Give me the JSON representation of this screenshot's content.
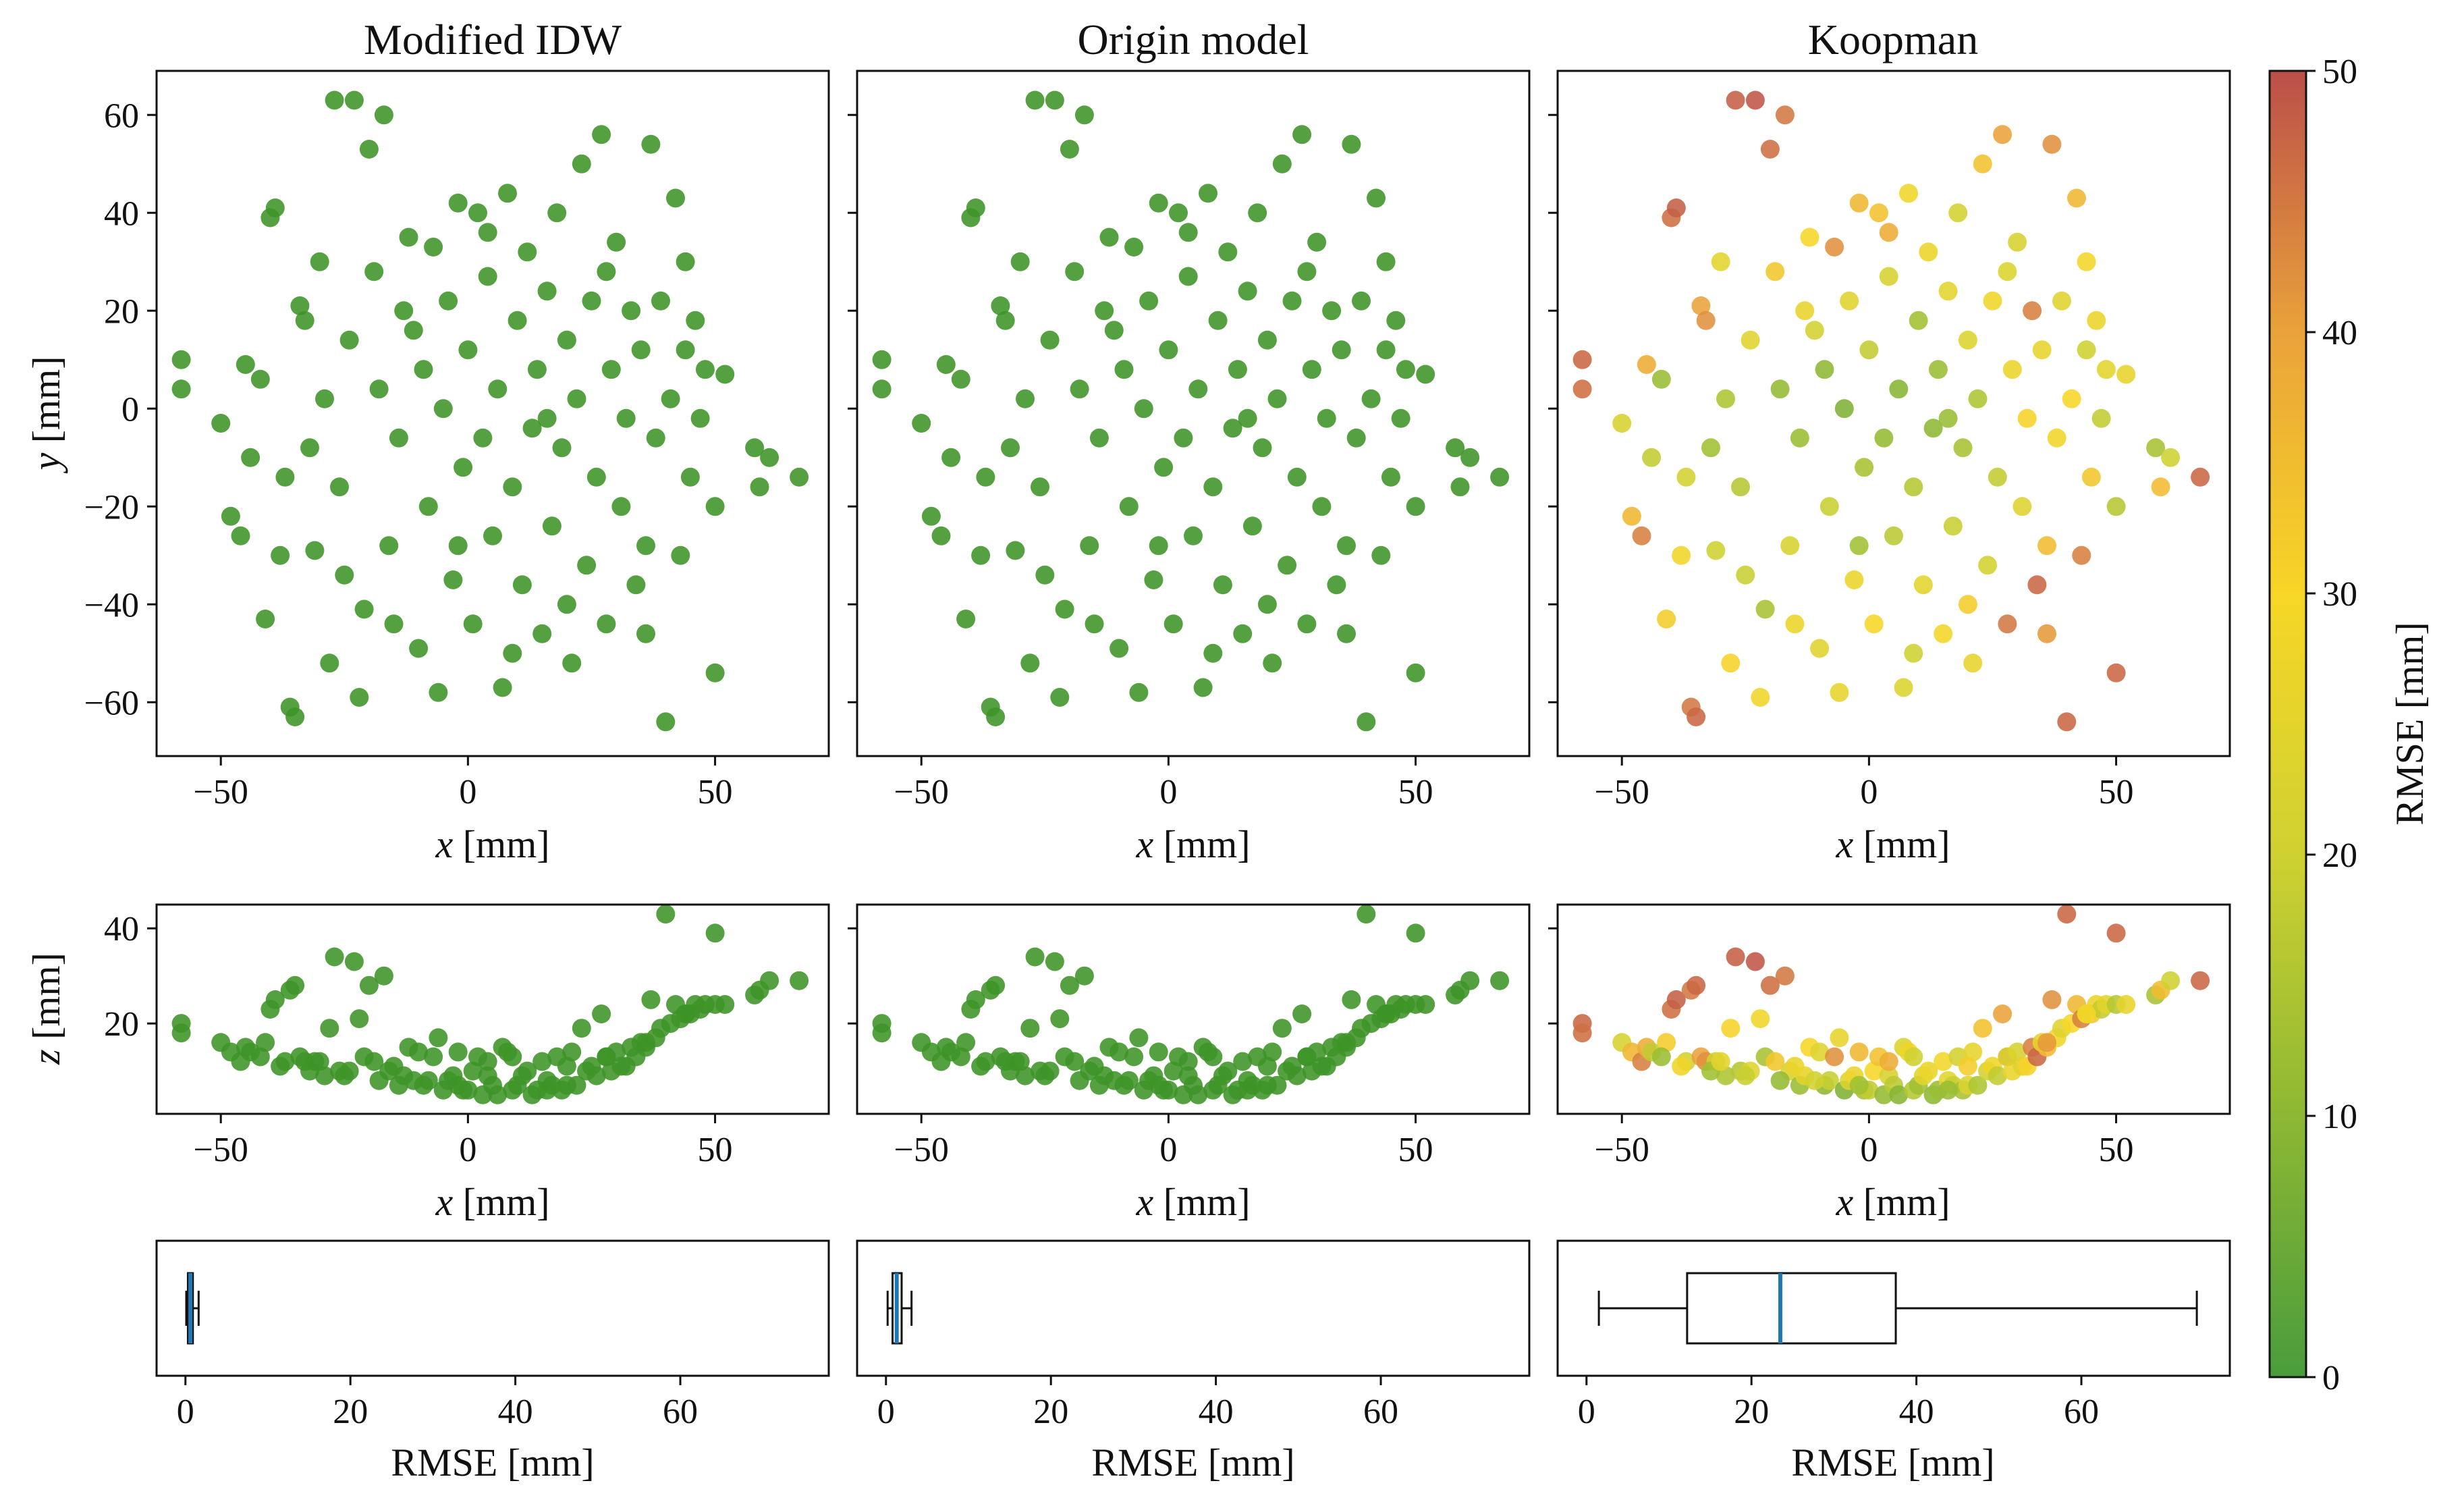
{
  "chart_data": {
    "type": "scatter",
    "panel_titles": [
      "Modified IDW",
      "Origin model",
      "Koopman"
    ],
    "xy_scatter": {
      "xlabel_var": "x",
      "xlabel_unit": "[mm]",
      "ylabel_var": "y",
      "ylabel_unit": "[mm]",
      "xlim": [
        -63,
        73
      ],
      "ylim": [
        -71,
        69
      ],
      "xticks": [
        -50,
        0,
        50
      ],
      "yticks": [
        -60,
        -40,
        -20,
        0,
        20,
        40,
        60
      ],
      "xtick_labels": [
        "−50",
        "0",
        "50"
      ],
      "ytick_labels": [
        "−60",
        "−40",
        "−20",
        "0",
        "20",
        "40",
        "60"
      ]
    },
    "xz_scatter": {
      "xlabel_var": "x",
      "xlabel_unit": "[mm]",
      "ylabel_var": "z",
      "ylabel_unit": "[mm]",
      "xlim": [
        -63,
        73
      ],
      "ylim": [
        1,
        45
      ],
      "xticks": [
        -50,
        0,
        50
      ],
      "yticks": [
        20,
        40
      ],
      "xtick_labels": [
        "−50",
        "0",
        "50"
      ],
      "ytick_labels": [
        "20",
        "40"
      ]
    },
    "rmse_boxplot": {
      "xlabel": "RMSE [mm]",
      "xlim": [
        -3.5,
        78
      ],
      "xticks": [
        0,
        20,
        40,
        60
      ],
      "xtick_labels": [
        "0",
        "20",
        "40",
        "60"
      ],
      "boxes": [
        {
          "whisker_low": 0.1,
          "q1": 0.3,
          "median": 0.6,
          "q3": 0.9,
          "whisker_high": 1.6
        },
        {
          "whisker_low": 0.2,
          "q1": 0.8,
          "median": 1.3,
          "q3": 1.9,
          "whisker_high": 3.1
        },
        {
          "whisker_low": 1.5,
          "q1": 12.2,
          "median": 23.5,
          "q3": 37.5,
          "whisker_high": 74
        }
      ]
    },
    "colorbar": {
      "label": "RMSE [mm]",
      "min": 0,
      "max": 50,
      "ticks": [
        0,
        10,
        20,
        30,
        40,
        50
      ],
      "tick_labels": [
        "0",
        "10",
        "20",
        "30",
        "40",
        "50"
      ],
      "colors": [
        "#4a9c3c",
        "#8db833",
        "#cfd131",
        "#f7d626",
        "#eaa23a",
        "#bb4f49"
      ]
    },
    "point_color_constant": "#3d9427",
    "points": [
      {
        "x": -58,
        "y": 10,
        "z": 20,
        "rmse": 47
      },
      {
        "x": -58,
        "y": 4,
        "z": 18,
        "rmse": 46
      },
      {
        "x": -50,
        "y": -3,
        "z": 16,
        "rmse": 22
      },
      {
        "x": -48,
        "y": -22,
        "z": 14,
        "rmse": 36
      },
      {
        "x": -46,
        "y": -26,
        "z": 12,
        "rmse": 44
      },
      {
        "x": -45,
        "y": 9,
        "z": 15,
        "rmse": 38
      },
      {
        "x": -44,
        "y": -10,
        "z": 14,
        "rmse": 18
      },
      {
        "x": -41,
        "y": -43,
        "z": 16,
        "rmse": 32
      },
      {
        "x": -40,
        "y": 39,
        "z": 23,
        "rmse": 46
      },
      {
        "x": -39,
        "y": 41,
        "z": 25,
        "rmse": 48
      },
      {
        "x": -37,
        "y": -14,
        "z": 12,
        "rmse": 21
      },
      {
        "x": -36,
        "y": -61,
        "z": 27,
        "rmse": 45
      },
      {
        "x": -35,
        "y": -63,
        "z": 28,
        "rmse": 47
      },
      {
        "x": -34,
        "y": 21,
        "z": 13,
        "rmse": 40
      },
      {
        "x": -33,
        "y": 18,
        "z": 12,
        "rmse": 42
      },
      {
        "x": -31,
        "y": -29,
        "z": 12,
        "rmse": 20
      },
      {
        "x": -29,
        "y": 2,
        "z": 9,
        "rmse": 15
      },
      {
        "x": -28,
        "y": -52,
        "z": 19,
        "rmse": 31
      },
      {
        "x": -27,
        "y": 63,
        "z": 34,
        "rmse": 48
      },
      {
        "x": -26,
        "y": -16,
        "z": 10,
        "rmse": 16
      },
      {
        "x": -24,
        "y": 14,
        "z": 10,
        "rmse": 24
      },
      {
        "x": -23,
        "y": 63,
        "z": 33,
        "rmse": 49
      },
      {
        "x": -22,
        "y": -59,
        "z": 21,
        "rmse": 28
      },
      {
        "x": -21,
        "y": -41,
        "z": 13,
        "rmse": 14
      },
      {
        "x": -20,
        "y": 53,
        "z": 28,
        "rmse": 46
      },
      {
        "x": -19,
        "y": 28,
        "z": 12,
        "rmse": 33
      },
      {
        "x": -17,
        "y": 60,
        "z": 30,
        "rmse": 45
      },
      {
        "x": -16,
        "y": -28,
        "z": 10,
        "rmse": 22
      },
      {
        "x": -14,
        "y": -6,
        "z": 7,
        "rmse": 12
      },
      {
        "x": -13,
        "y": 20,
        "z": 9,
        "rmse": 26
      },
      {
        "x": -12,
        "y": 35,
        "z": 15,
        "rmse": 30
      },
      {
        "x": -10,
        "y": -49,
        "z": 14,
        "rmse": 24
      },
      {
        "x": -9,
        "y": 8,
        "z": 7,
        "rmse": 10
      },
      {
        "x": -8,
        "y": -20,
        "z": 8,
        "rmse": 19
      },
      {
        "x": -7,
        "y": 33,
        "z": 13,
        "rmse": 42
      },
      {
        "x": -6,
        "y": -58,
        "z": 17,
        "rmse": 26
      },
      {
        "x": -5,
        "y": 0,
        "z": 6,
        "rmse": 8
      },
      {
        "x": -4,
        "y": 22,
        "z": 8,
        "rmse": 24
      },
      {
        "x": -3,
        "y": -35,
        "z": 9,
        "rmse": 27
      },
      {
        "x": -2,
        "y": 42,
        "z": 14,
        "rmse": 36
      },
      {
        "x": -1,
        "y": -12,
        "z": 6,
        "rmse": 14
      },
      {
        "x": 0,
        "y": 12,
        "z": 6,
        "rmse": 18
      },
      {
        "x": 1,
        "y": -44,
        "z": 10,
        "rmse": 30
      },
      {
        "x": 2,
        "y": 40,
        "z": 13,
        "rmse": 34
      },
      {
        "x": 3,
        "y": -6,
        "z": 5,
        "rmse": 11
      },
      {
        "x": 4,
        "y": 27,
        "z": 9,
        "rmse": 22
      },
      {
        "x": 5,
        "y": -26,
        "z": 7,
        "rmse": 17
      },
      {
        "x": 6,
        "y": 4,
        "z": 5,
        "rmse": 9
      },
      {
        "x": 7,
        "y": -57,
        "z": 15,
        "rmse": 23
      },
      {
        "x": 8,
        "y": 44,
        "z": 14,
        "rmse": 28
      },
      {
        "x": 9,
        "y": -16,
        "z": 6,
        "rmse": 16
      },
      {
        "x": 10,
        "y": 18,
        "z": 7,
        "rmse": 13
      },
      {
        "x": 11,
        "y": -36,
        "z": 9,
        "rmse": 25
      },
      {
        "x": 12,
        "y": 32,
        "z": 10,
        "rmse": 27
      },
      {
        "x": 13,
        "y": -4,
        "z": 5,
        "rmse": 10
      },
      {
        "x": 14,
        "y": 8,
        "z": 6,
        "rmse": 12
      },
      {
        "x": 15,
        "y": -46,
        "z": 12,
        "rmse": 29
      },
      {
        "x": 16,
        "y": 24,
        "z": 8,
        "rmse": 25
      },
      {
        "x": 17,
        "y": -24,
        "z": 7,
        "rmse": 19
      },
      {
        "x": 18,
        "y": 40,
        "z": 13,
        "rmse": 21
      },
      {
        "x": 19,
        "y": -8,
        "z": 6,
        "rmse": 14
      },
      {
        "x": 20,
        "y": 14,
        "z": 7,
        "rmse": 23
      },
      {
        "x": 21,
        "y": -52,
        "z": 14,
        "rmse": 26
      },
      {
        "x": 22,
        "y": 2,
        "z": 7,
        "rmse": 15
      },
      {
        "x": 23,
        "y": 50,
        "z": 19,
        "rmse": 34
      },
      {
        "x": 24,
        "y": -32,
        "z": 10,
        "rmse": 21
      },
      {
        "x": 25,
        "y": 22,
        "z": 11,
        "rmse": 28
      },
      {
        "x": 26,
        "y": -14,
        "z": 9,
        "rmse": 18
      },
      {
        "x": 27,
        "y": 56,
        "z": 22,
        "rmse": 40
      },
      {
        "x": 28,
        "y": -44,
        "z": 13,
        "rmse": 45
      },
      {
        "x": 29,
        "y": 8,
        "z": 10,
        "rmse": 27
      },
      {
        "x": 30,
        "y": 34,
        "z": 14,
        "rmse": 22
      },
      {
        "x": 31,
        "y": -20,
        "z": 11,
        "rmse": 24
      },
      {
        "x": 32,
        "y": -2,
        "z": 11,
        "rmse": 31
      },
      {
        "x": 33,
        "y": 20,
        "z": 15,
        "rmse": 44
      },
      {
        "x": 34,
        "y": -36,
        "z": 13,
        "rmse": 47
      },
      {
        "x": 35,
        "y": 12,
        "z": 16,
        "rmse": 26
      },
      {
        "x": 36,
        "y": -28,
        "z": 15,
        "rmse": 35
      },
      {
        "x": 37,
        "y": 54,
        "z": 25,
        "rmse": 42
      },
      {
        "x": 38,
        "y": -6,
        "z": 17,
        "rmse": 28
      },
      {
        "x": 39,
        "y": 22,
        "z": 19,
        "rmse": 24
      },
      {
        "x": 40,
        "y": -64,
        "z": 43,
        "rmse": 47
      },
      {
        "x": 41,
        "y": 2,
        "z": 20,
        "rmse": 30
      },
      {
        "x": 42,
        "y": 43,
        "z": 24,
        "rmse": 36
      },
      {
        "x": 43,
        "y": -30,
        "z": 21,
        "rmse": 44
      },
      {
        "x": 44,
        "y": 12,
        "z": 22,
        "rmse": 20
      },
      {
        "x": 45,
        "y": -14,
        "z": 22,
        "rmse": 33
      },
      {
        "x": 46,
        "y": 18,
        "z": 24,
        "rmse": 27
      },
      {
        "x": 47,
        "y": -2,
        "z": 23,
        "rmse": 18
      },
      {
        "x": 48,
        "y": 8,
        "z": 24,
        "rmse": 25
      },
      {
        "x": 50,
        "y": -54,
        "z": 39,
        "rmse": 47
      },
      {
        "x": 50,
        "y": -20,
        "z": 24,
        "rmse": 16
      },
      {
        "x": 52,
        "y": 7,
        "z": 24,
        "rmse": 26
      },
      {
        "x": 58,
        "y": -8,
        "z": 26,
        "rmse": 14
      },
      {
        "x": 59,
        "y": -16,
        "z": 27,
        "rmse": 35
      },
      {
        "x": 61,
        "y": -10,
        "z": 29,
        "rmse": 20
      },
      {
        "x": 67,
        "y": -14,
        "z": 29,
        "rmse": 47
      },
      {
        "x": -42,
        "y": 6,
        "z": 13,
        "rmse": 12
      },
      {
        "x": -38,
        "y": -30,
        "z": 11,
        "rmse": 28
      },
      {
        "x": -32,
        "y": -8,
        "z": 10,
        "rmse": 13
      },
      {
        "x": -30,
        "y": 30,
        "z": 12,
        "rmse": 25
      },
      {
        "x": -25,
        "y": -34,
        "z": 9,
        "rmse": 19
      },
      {
        "x": -18,
        "y": 4,
        "z": 8,
        "rmse": 11
      },
      {
        "x": -15,
        "y": -44,
        "z": 11,
        "rmse": 27
      },
      {
        "x": -11,
        "y": 16,
        "z": 8,
        "rmse": 21
      },
      {
        "x": -2,
        "y": -28,
        "z": 7,
        "rmse": 13
      },
      {
        "x": 4,
        "y": 36,
        "z": 12,
        "rmse": 38
      },
      {
        "x": 9,
        "y": -50,
        "z": 13,
        "rmse": 20
      },
      {
        "x": 16,
        "y": -2,
        "z": 6,
        "rmse": 12
      },
      {
        "x": 20,
        "y": -40,
        "z": 11,
        "rmse": 32
      },
      {
        "x": 28,
        "y": 28,
        "z": 13,
        "rmse": 23
      },
      {
        "x": 36,
        "y": -46,
        "z": 16,
        "rmse": 41
      },
      {
        "x": 44,
        "y": 30,
        "z": 22,
        "rmse": 29
      }
    ]
  }
}
